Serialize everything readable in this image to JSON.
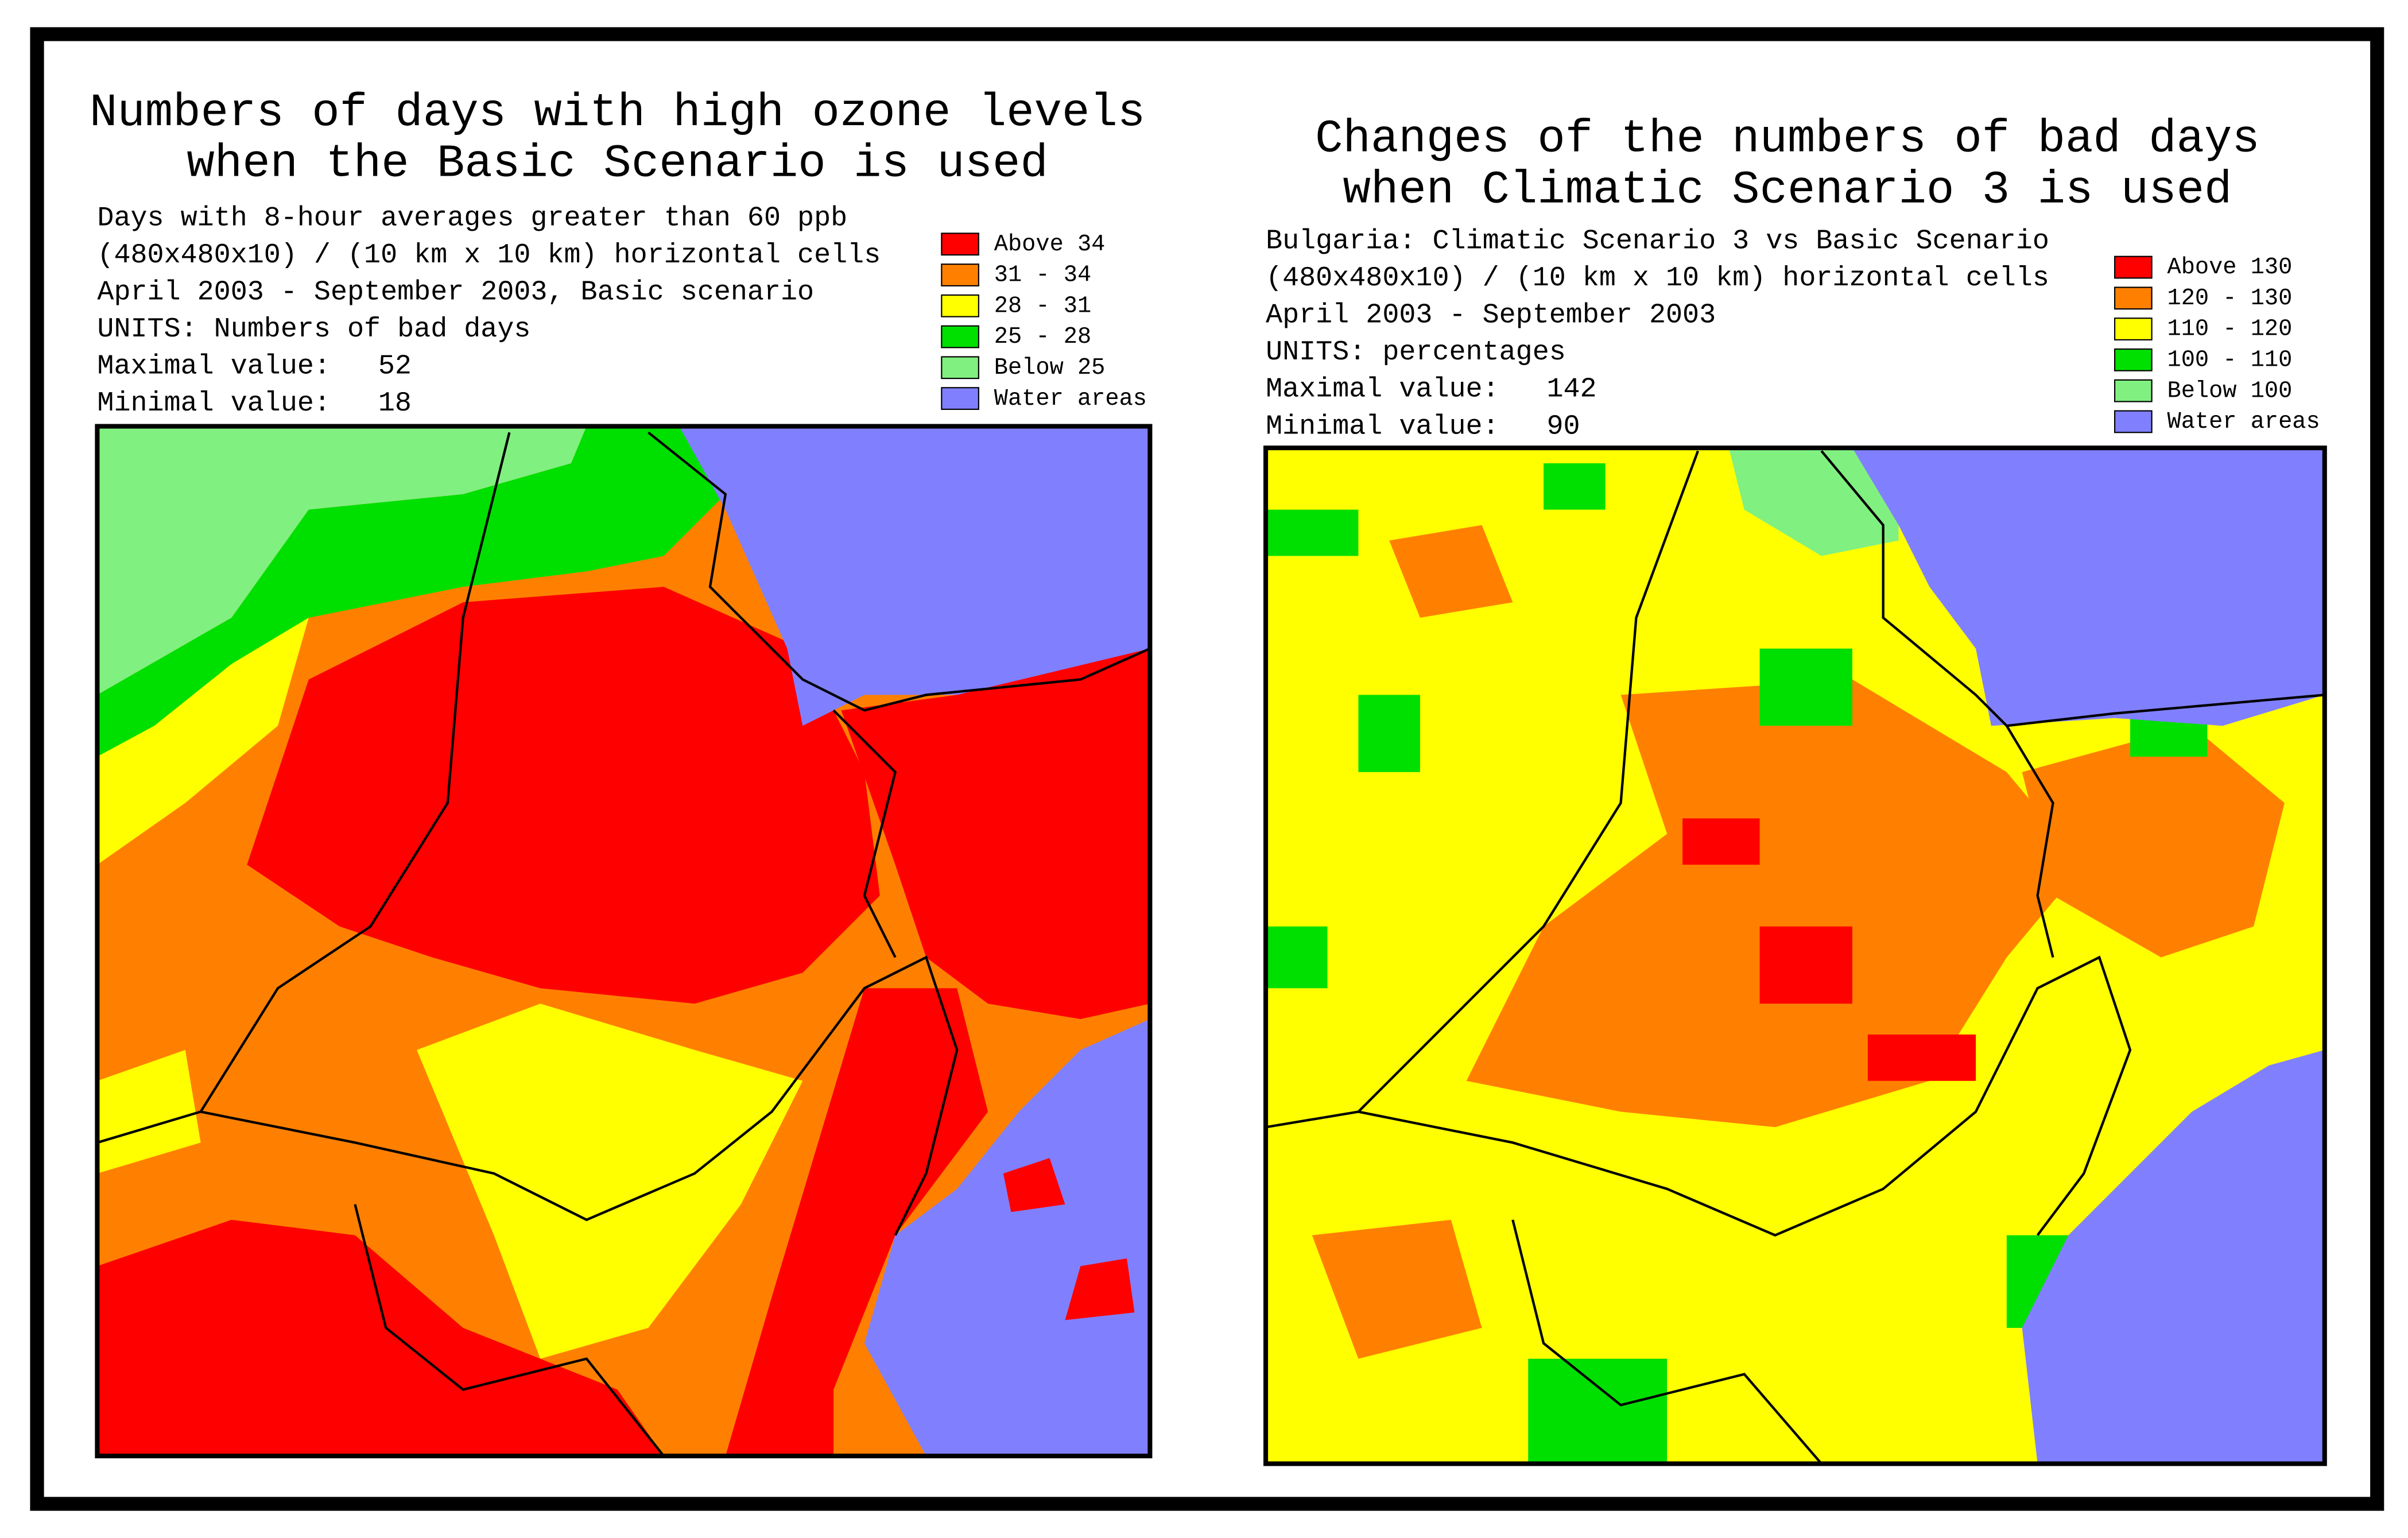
{
  "panels": [
    {
      "title": [
        "Numbers of days with high ozone levels",
        "when the Basic Scenario is used"
      ],
      "info": [
        "Days with 8-hour averages greater than 60 ppb",
        "(480x480x10) / (10 km x 10 km) horizontal cells",
        "April 2003 - September 2003, Basic scenario",
        "UNITS: Numbers of bad days"
      ],
      "max": {
        "label": "Maximal value:",
        "value": 52
      },
      "min": {
        "label": "Minimal value:",
        "value": 18
      },
      "legend": [
        {
          "label": "Above  34",
          "color": "#ff0000"
        },
        {
          "label": "31 -  34",
          "color": "#ff8000"
        },
        {
          "label": "28 -  31",
          "color": "#ffff00"
        },
        {
          "label": "25 -  28",
          "color": "#00e000"
        },
        {
          "label": "Below  25",
          "color": "#80f080"
        },
        {
          "label": "Water areas",
          "color": "#8080ff"
        }
      ]
    },
    {
      "title": [
        "Changes of the numbers of bad days",
        "when Climatic Scenario 3 is used"
      ],
      "info": [
        "Bulgaria: Climatic Scenario 3 vs Basic Scenario",
        "(480x480x10) / (10 km x 10 km) horizontal cells",
        "April 2003 - September 2003",
        "UNITS: percentages"
      ],
      "max": {
        "label": "Maximal value:",
        "value": 142
      },
      "min": {
        "label": "Minimal value:",
        "value": 90
      },
      "legend": [
        {
          "label": "Above 130",
          "color": "#ff0000"
        },
        {
          "label": "120 - 130",
          "color": "#ff8000"
        },
        {
          "label": "110 - 120",
          "color": "#ffff00"
        },
        {
          "label": "100 - 110",
          "color": "#00e000"
        },
        {
          "label": "Below 100",
          "color": "#80f080"
        },
        {
          "label": "Water areas",
          "color": "#8080ff"
        }
      ]
    }
  ]
}
